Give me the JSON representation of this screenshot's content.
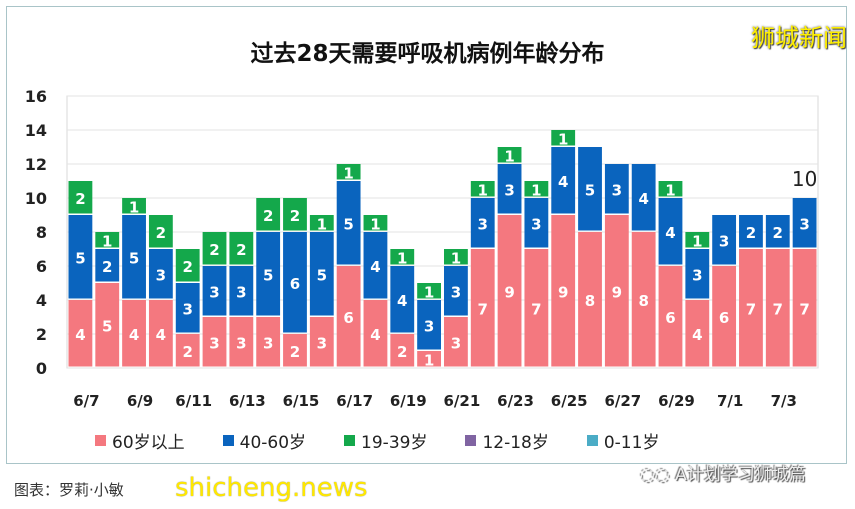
{
  "watermark_top": "狮城新闻",
  "watermark_bottom": "shicheng.news",
  "credit": "图表：罗莉·小敏",
  "wechat_account": "A计划学习狮城篇",
  "chart_data": {
    "type": "bar",
    "stacked": true,
    "title": "过去28天需要呼吸机病例年龄分布",
    "categories": [
      "6/7",
      "6/8",
      "6/9",
      "6/10",
      "6/11",
      "6/12",
      "6/13",
      "6/14",
      "6/15",
      "6/16",
      "6/17",
      "6/18",
      "6/19",
      "6/20",
      "6/21",
      "6/22",
      "6/23",
      "6/24",
      "6/25",
      "6/26",
      "6/27",
      "6/28",
      "6/29",
      "6/30",
      "7/1",
      "7/2",
      "7/3",
      "7/4"
    ],
    "tick_labels": [
      "6/7",
      "6/9",
      "6/11",
      "6/13",
      "6/15",
      "6/17",
      "6/19",
      "6/21",
      "6/23",
      "6/25",
      "6/27",
      "6/29",
      "7/1",
      "7/3"
    ],
    "series": [
      {
        "name": "60岁以上",
        "color": "#f4787f",
        "values": [
          4,
          5,
          4,
          4,
          2,
          3,
          3,
          3,
          2,
          3,
          6,
          4,
          2,
          1,
          3,
          7,
          9,
          7,
          9,
          8,
          9,
          8,
          6,
          4,
          6,
          7,
          7,
          7
        ]
      },
      {
        "name": "40-60岁",
        "color": "#0a64be",
        "values": [
          5,
          2,
          5,
          3,
          3,
          3,
          3,
          5,
          6,
          5,
          5,
          4,
          4,
          3,
          3,
          3,
          3,
          3,
          4,
          5,
          3,
          4,
          4,
          3,
          3,
          2,
          2,
          3
        ]
      },
      {
        "name": "19-39岁",
        "color": "#14a84b",
        "values": [
          2,
          1,
          1,
          2,
          2,
          2,
          2,
          2,
          2,
          1,
          1,
          1,
          1,
          1,
          1,
          1,
          1,
          1,
          1,
          0,
          0,
          0,
          1,
          1,
          0,
          0,
          0,
          0
        ]
      },
      {
        "name": "12-18岁",
        "color": "#8064a2",
        "values": [
          0,
          0,
          0,
          0,
          0,
          0,
          0,
          0,
          0,
          0,
          0,
          0,
          0,
          0,
          0,
          0,
          0,
          0,
          0,
          0,
          0,
          0,
          0,
          0,
          0,
          0,
          0,
          0
        ]
      },
      {
        "name": "0-11岁",
        "color": "#4bacc6",
        "values": [
          0,
          0,
          0,
          0,
          0,
          0,
          0,
          0,
          0,
          0,
          0,
          0,
          0,
          0,
          0,
          0,
          0,
          0,
          0,
          0,
          0,
          0,
          0,
          0,
          0,
          0,
          0,
          0
        ]
      }
    ],
    "annotation": {
      "category": "7/4",
      "text": "10"
    },
    "ylim": [
      0,
      16
    ],
    "yticks": [
      0,
      2,
      4,
      6,
      8,
      10,
      12,
      14,
      16
    ],
    "grid": true,
    "legend_position": "bottom"
  }
}
